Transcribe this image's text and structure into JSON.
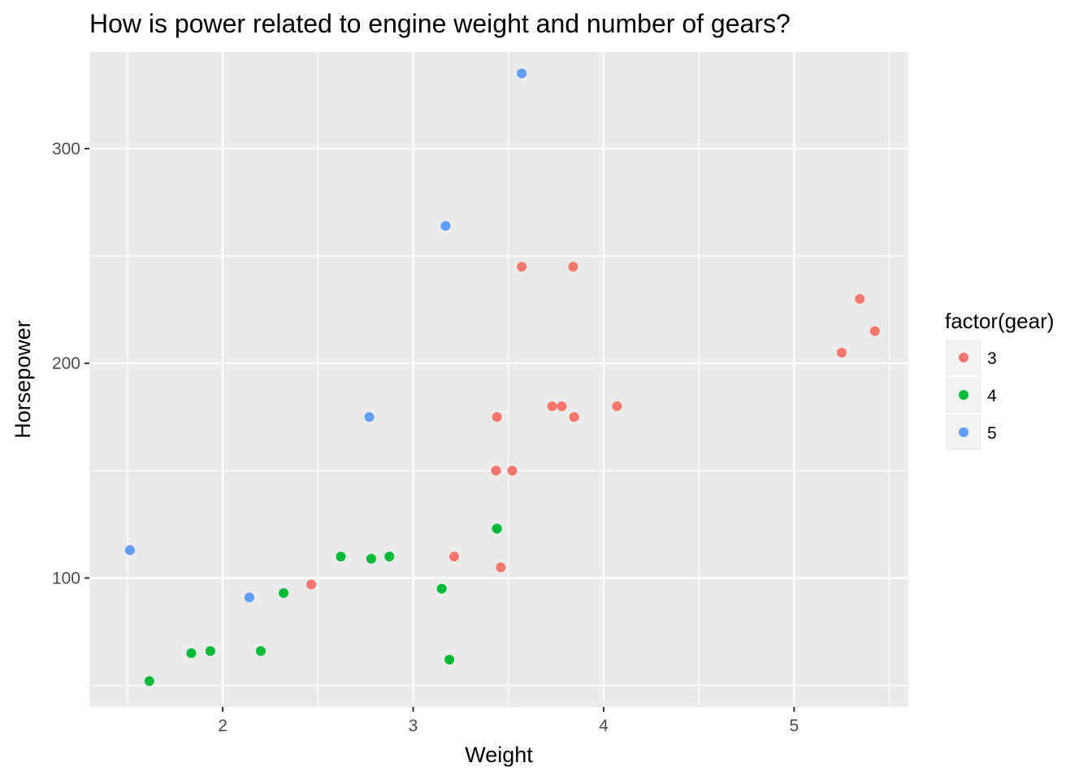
{
  "chart_data": {
    "type": "scatter",
    "title": "How is power related to engine weight and number of gears?",
    "xlabel": "Weight",
    "ylabel": "Horsepower",
    "xlim": [
      1.3,
      5.6
    ],
    "ylim": [
      40,
      345
    ],
    "x_ticks": [
      2,
      3,
      4,
      5
    ],
    "y_ticks": [
      100,
      200,
      300
    ],
    "x_tick_labels": [
      "2",
      "3",
      "4",
      "5"
    ],
    "y_tick_labels": [
      "100",
      "200",
      "300"
    ],
    "grid": true,
    "panel_background": "#ebebeb",
    "legend": {
      "title": "factor(gear)",
      "placement": "right",
      "entries": [
        {
          "label": "3",
          "color": "#F8766D"
        },
        {
          "label": "4",
          "color": "#00BA38"
        },
        {
          "label": "5",
          "color": "#619CFF"
        }
      ]
    },
    "series": [
      {
        "name": "3",
        "color": "#F8766D",
        "points": [
          {
            "x": 2.465,
            "y": 97
          },
          {
            "x": 3.215,
            "y": 110
          },
          {
            "x": 3.44,
            "y": 175
          },
          {
            "x": 3.46,
            "y": 105
          },
          {
            "x": 3.57,
            "y": 245
          },
          {
            "x": 4.07,
            "y": 180
          },
          {
            "x": 3.73,
            "y": 180
          },
          {
            "x": 3.78,
            "y": 180
          },
          {
            "x": 5.25,
            "y": 205
          },
          {
            "x": 5.424,
            "y": 215
          },
          {
            "x": 5.345,
            "y": 230
          },
          {
            "x": 3.52,
            "y": 150
          },
          {
            "x": 3.435,
            "y": 150
          },
          {
            "x": 3.84,
            "y": 245
          },
          {
            "x": 3.845,
            "y": 175
          }
        ]
      },
      {
        "name": "4",
        "color": "#00BA38",
        "points": [
          {
            "x": 2.62,
            "y": 110
          },
          {
            "x": 2.875,
            "y": 110
          },
          {
            "x": 2.32,
            "y": 93
          },
          {
            "x": 3.19,
            "y": 62
          },
          {
            "x": 3.15,
            "y": 95
          },
          {
            "x": 3.44,
            "y": 123
          },
          {
            "x": 3.44,
            "y": 123
          },
          {
            "x": 2.2,
            "y": 66
          },
          {
            "x": 1.615,
            "y": 52
          },
          {
            "x": 1.835,
            "y": 65
          },
          {
            "x": 1.935,
            "y": 66
          },
          {
            "x": 2.78,
            "y": 109
          }
        ]
      },
      {
        "name": "5",
        "color": "#619CFF",
        "points": [
          {
            "x": 2.14,
            "y": 91
          },
          {
            "x": 1.513,
            "y": 113
          },
          {
            "x": 3.17,
            "y": 264
          },
          {
            "x": 2.77,
            "y": 175
          },
          {
            "x": 3.57,
            "y": 335
          }
        ]
      }
    ]
  }
}
